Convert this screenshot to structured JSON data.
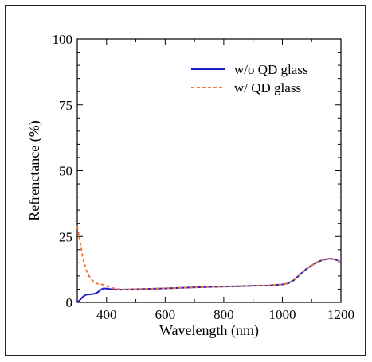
{
  "chart_data": {
    "type": "line",
    "title": "",
    "xlabel": "Wavelength (nm)",
    "ylabel": "Refrenctance (%)",
    "xlim": [
      300,
      1200
    ],
    "ylim": [
      0,
      100
    ],
    "xticks": [
      400,
      600,
      800,
      1000,
      1200
    ],
    "yticks": [
      0,
      25,
      50,
      75,
      100
    ],
    "legend_position": "top-right",
    "grid": false,
    "series": [
      {
        "name": "w/o QD glass",
        "color": "#1f1fd0",
        "style": "solid",
        "x": [
          300,
          305,
          310,
          320,
          330,
          340,
          350,
          360,
          370,
          380,
          390,
          400,
          420,
          450,
          500,
          600,
          700,
          800,
          850,
          900,
          950,
          1000,
          1020,
          1040,
          1060,
          1080,
          1100,
          1120,
          1140,
          1160,
          1180,
          1200
        ],
        "y": [
          0.5,
          0.4,
          1.0,
          2.2,
          2.9,
          3.0,
          3.1,
          3.3,
          3.8,
          4.8,
          5.3,
          5.2,
          4.9,
          4.8,
          5.0,
          5.3,
          5.7,
          6.0,
          6.1,
          6.3,
          6.4,
          6.8,
          7.2,
          8.5,
          10.5,
          12.5,
          14.0,
          15.3,
          16.2,
          16.6,
          16.3,
          15.4
        ]
      },
      {
        "name": "w/ QD glass",
        "color": "#f07840",
        "style": "dashed",
        "x": [
          300,
          305,
          310,
          315,
          320,
          330,
          340,
          350,
          360,
          370,
          380,
          390,
          400,
          420,
          450,
          500,
          600,
          700,
          800,
          850,
          900,
          950,
          1000,
          1020,
          1040,
          1060,
          1080,
          1100,
          1120,
          1140,
          1160,
          1180,
          1200
        ],
        "y": [
          29.0,
          26.0,
          22.5,
          19.5,
          16.5,
          12.5,
          10.0,
          8.5,
          7.5,
          7.0,
          6.9,
          6.6,
          6.2,
          5.4,
          4.9,
          5.0,
          5.3,
          5.7,
          6.0,
          6.1,
          6.3,
          6.4,
          6.8,
          7.2,
          8.5,
          10.5,
          12.5,
          14.0,
          15.3,
          16.2,
          16.6,
          16.3,
          15.4
        ]
      }
    ]
  }
}
